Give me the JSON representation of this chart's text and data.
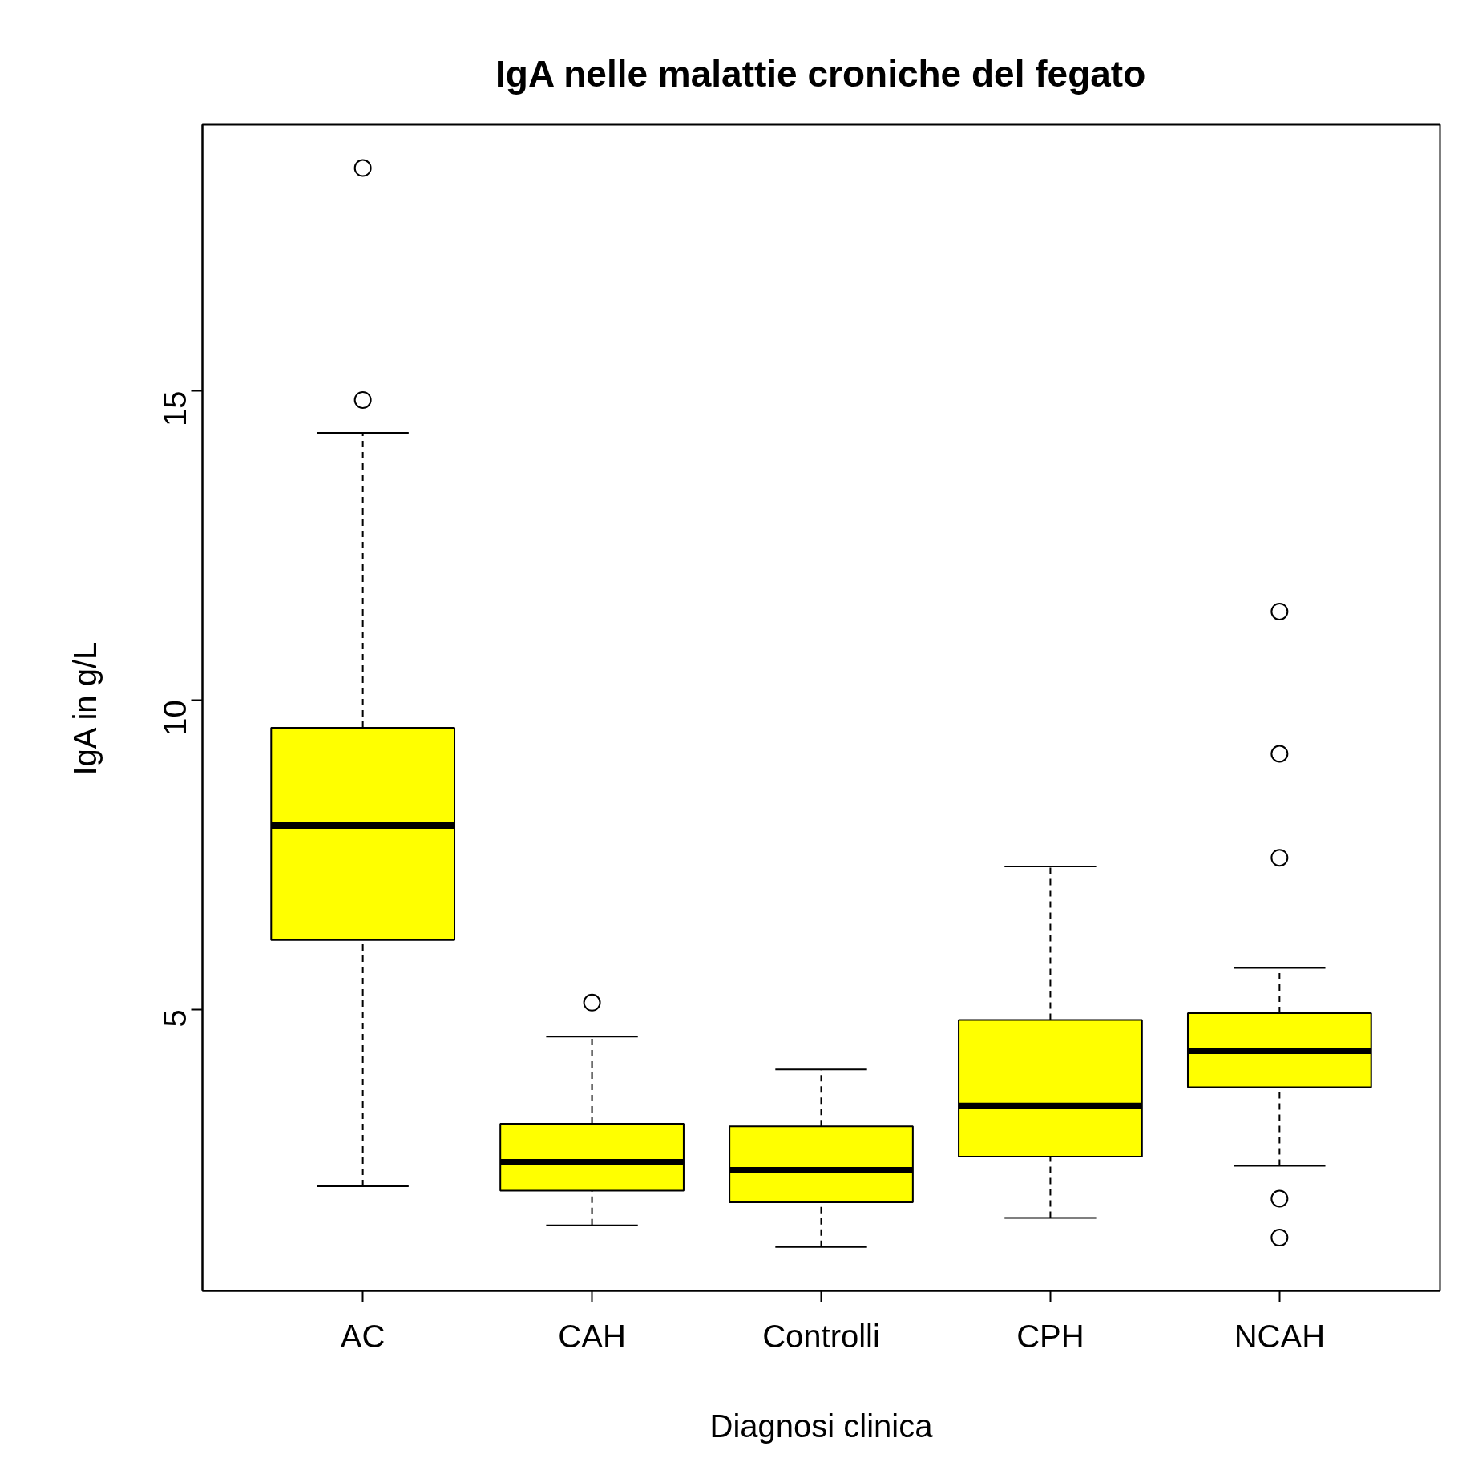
{
  "chart_data": {
    "type": "box",
    "title": "IgA nelle malattie croniche del fegato",
    "xlabel": "Diagnosi clinica",
    "ylabel": "IgA in g/L",
    "categories": [
      "AC",
      "CAH",
      "Controlli",
      "CPH",
      "NCAH"
    ],
    "color": "#ffff00",
    "ylim": [
      0.45,
      19.3
    ],
    "yticks": [
      5,
      10,
      15
    ],
    "grid": false,
    "boxes": [
      {
        "low": 2.14,
        "q1": 6.12,
        "median": 7.97,
        "q3": 9.55,
        "high": 14.32,
        "outliers": [
          18.6,
          14.85
        ]
      },
      {
        "low": 1.51,
        "q1": 2.07,
        "median": 2.53,
        "q3": 3.15,
        "high": 4.56,
        "outliers": [
          5.11
        ]
      },
      {
        "low": 1.16,
        "q1": 1.88,
        "median": 2.4,
        "q3": 3.11,
        "high": 4.03
      },
      {
        "low": 1.63,
        "q1": 2.62,
        "median": 3.44,
        "q3": 4.83,
        "high": 7.31
      },
      {
        "low": 2.47,
        "q1": 3.74,
        "median": 4.33,
        "q3": 4.94,
        "high": 5.67,
        "outliers": [
          11.43,
          9.13,
          7.45,
          1.94,
          1.31
        ]
      }
    ]
  }
}
